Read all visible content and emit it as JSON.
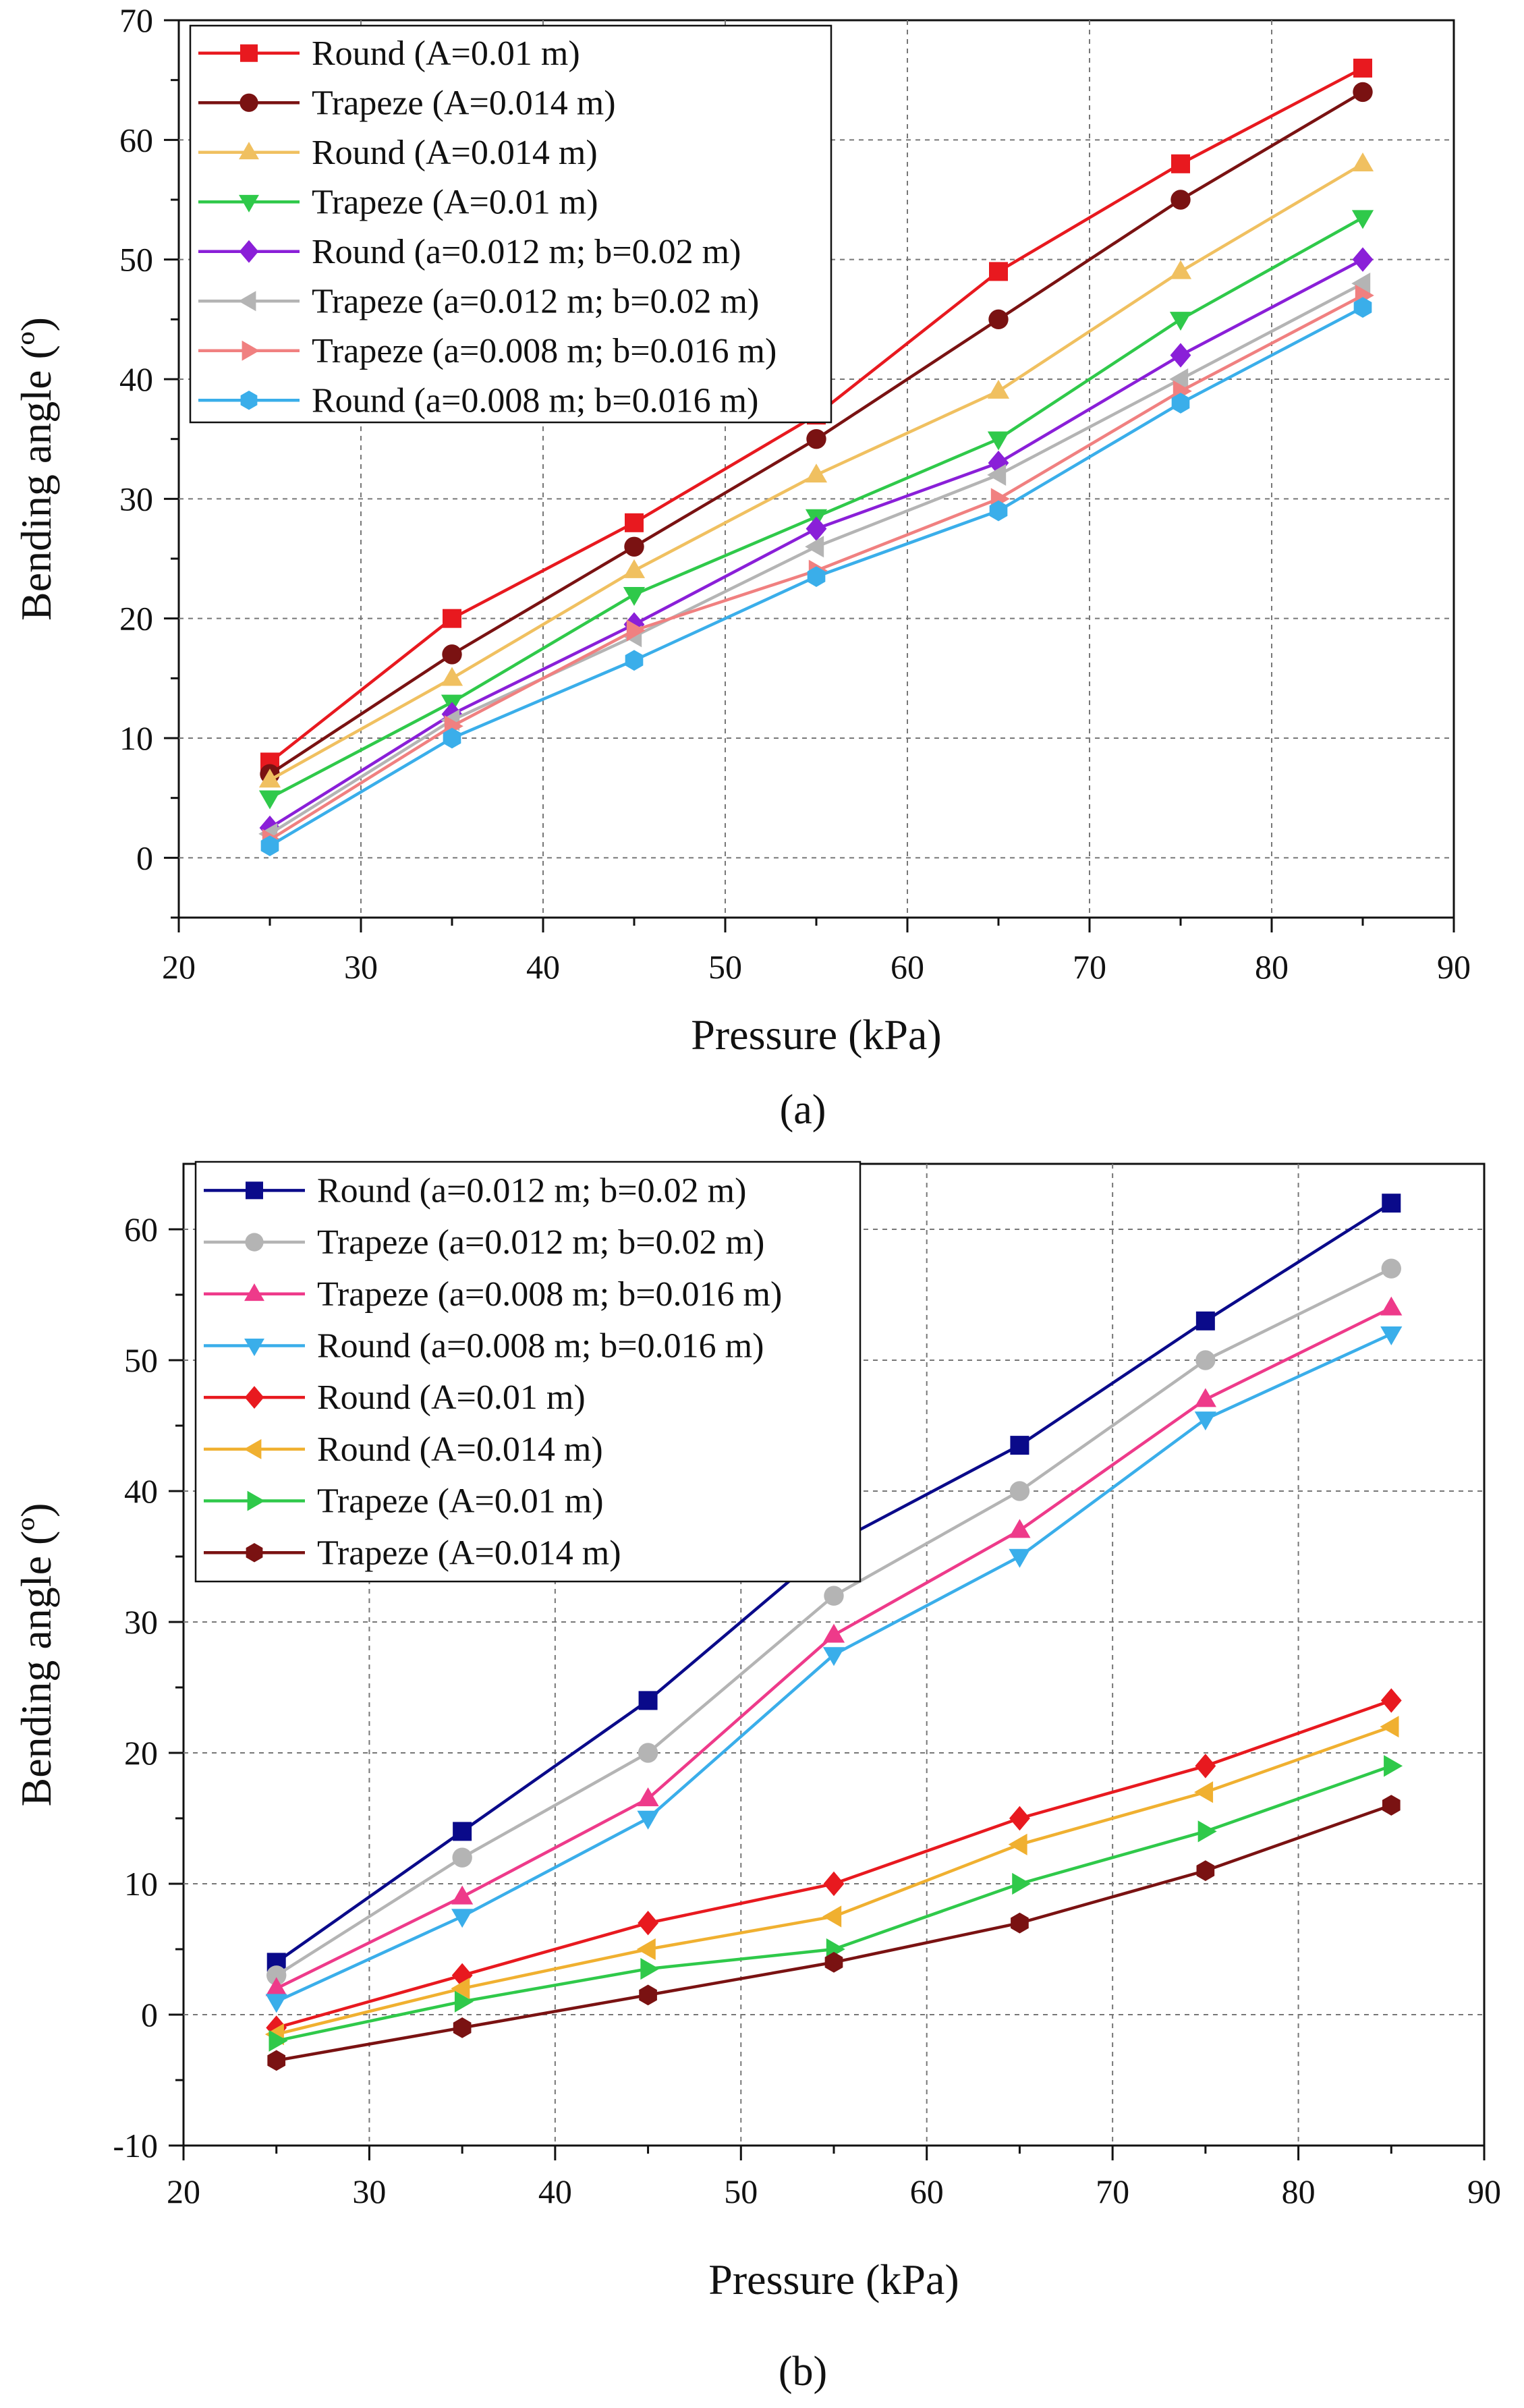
{
  "panel_labels": [
    "(a)",
    "(b)"
  ],
  "chart_data": [
    {
      "type": "line",
      "panel": "a",
      "title": "",
      "xlabel": "Pressure (kPa)",
      "ylabel": "Bending angle (º)",
      "xlim": [
        20,
        90
      ],
      "ylim": [
        -5,
        70
      ],
      "xticks": [
        20,
        30,
        40,
        50,
        60,
        70,
        80,
        90
      ],
      "yticks": [
        0,
        10,
        20,
        30,
        40,
        50,
        60,
        70
      ],
      "grid": true,
      "legend_position": "top-left",
      "x": [
        25,
        35,
        45,
        55,
        65,
        75,
        85
      ],
      "series": [
        {
          "name": "Round (A=0.01 m)",
          "color": "#e8191f",
          "marker": "square",
          "values": [
            8,
            20,
            28,
            37,
            49,
            58,
            66
          ]
        },
        {
          "name": "Trapeze (A=0.014 m)",
          "color": "#7a1212",
          "marker": "circle",
          "values": [
            7,
            17,
            26,
            35,
            45,
            55,
            64
          ]
        },
        {
          "name": "Round (A=0.014 m)",
          "color": "#f0c060",
          "marker": "triangle-up",
          "values": [
            6.5,
            15,
            24,
            32,
            39,
            49,
            58
          ]
        },
        {
          "name": "Trapeze (A=0.01 m)",
          "color": "#2fc94a",
          "marker": "triangle-down",
          "values": [
            5,
            13,
            22,
            28.5,
            35,
            45,
            53.5
          ]
        },
        {
          "name": "Round (a=0.012 m; b=0.02 m)",
          "color": "#8a1fd8",
          "marker": "diamond",
          "values": [
            2.5,
            12,
            19.5,
            27.5,
            33,
            42,
            50
          ]
        },
        {
          "name": "Trapeze (a=0.012 m; b=0.02 m)",
          "color": "#b4b4b4",
          "marker": "triangle-left",
          "values": [
            2,
            11.5,
            18.5,
            26,
            32,
            40,
            48
          ]
        },
        {
          "name": "Trapeze (a=0.008 m; b=0.016 m)",
          "color": "#f08080",
          "marker": "triangle-right",
          "values": [
            1.5,
            11,
            19,
            24,
            30,
            39,
            47
          ]
        },
        {
          "name": "Round (a=0.008 m; b=0.016 m)",
          "color": "#3aaeea",
          "marker": "hexagon",
          "values": [
            1,
            10,
            16.5,
            23.5,
            29,
            38,
            46
          ]
        }
      ]
    },
    {
      "type": "line",
      "panel": "b",
      "title": "",
      "xlabel": "Pressure (kPa)",
      "ylabel": "Bending angle (º)",
      "xlim": [
        20,
        90
      ],
      "ylim": [
        -10,
        65
      ],
      "xticks": [
        20,
        30,
        40,
        50,
        60,
        70,
        80,
        90
      ],
      "yticks": [
        -10,
        0,
        10,
        20,
        30,
        40,
        50,
        60
      ],
      "grid": true,
      "legend_position": "top-left",
      "x": [
        25,
        35,
        45,
        55,
        65,
        75,
        85
      ],
      "series": [
        {
          "name": "Round (a=0.012 m; b=0.02 m)",
          "color": "#0a0a8a",
          "marker": "square",
          "values": [
            4,
            14,
            24,
            36,
            43.5,
            53,
            62
          ]
        },
        {
          "name": "Trapeze (a=0.012 m; b=0.02 m)",
          "color": "#b4b4b4",
          "marker": "circle",
          "values": [
            3,
            12,
            20,
            32,
            40,
            50,
            57
          ]
        },
        {
          "name": "Trapeze (a=0.008 m; b=0.016 m)",
          "color": "#ee3a8a",
          "marker": "triangle-up",
          "values": [
            2,
            9,
            16.5,
            29,
            37,
            47,
            54
          ]
        },
        {
          "name": "Round (a=0.008 m; b=0.016 m)",
          "color": "#3aaeea",
          "marker": "triangle-down",
          "values": [
            1,
            7.5,
            15,
            27.5,
            35,
            45.5,
            52
          ]
        },
        {
          "name": "Round (A=0.01 m)",
          "color": "#e8191f",
          "marker": "diamond",
          "values": [
            -1,
            3,
            7,
            10,
            15,
            19,
            24
          ]
        },
        {
          "name": "Round (A=0.014 m)",
          "color": "#f0b030",
          "marker": "triangle-left",
          "values": [
            -1.5,
            2,
            5,
            7.5,
            13,
            17,
            22
          ]
        },
        {
          "name": "Trapeze (A=0.01 m)",
          "color": "#2fc94a",
          "marker": "triangle-right",
          "values": [
            -2,
            1,
            3.5,
            5,
            10,
            14,
            19
          ]
        },
        {
          "name": "Trapeze (A=0.014 m)",
          "color": "#7a1212",
          "marker": "hexagon",
          "values": [
            -3.5,
            -1,
            1.5,
            4,
            7,
            11,
            16
          ]
        }
      ]
    }
  ]
}
